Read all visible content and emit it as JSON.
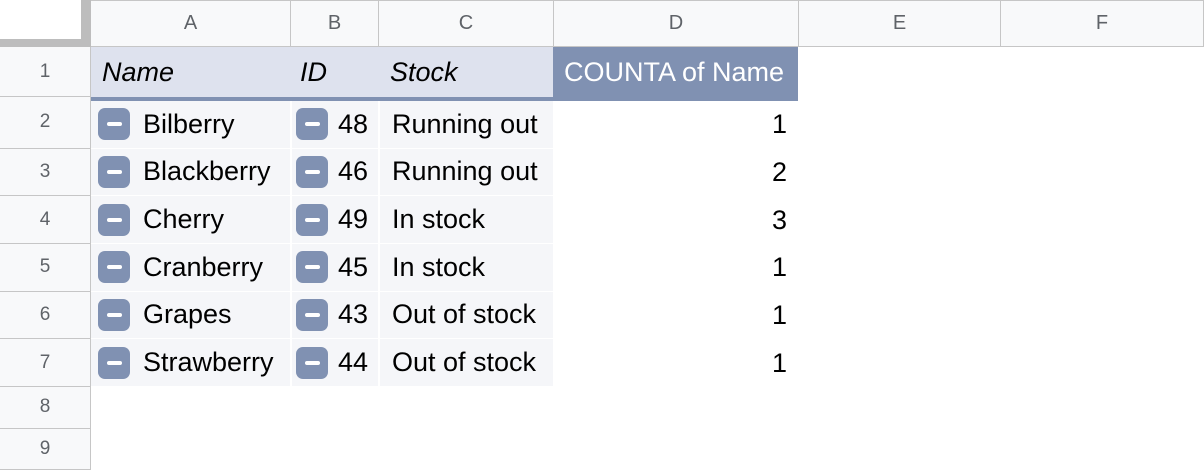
{
  "sheet": {
    "column_headers": [
      "A",
      "B",
      "C",
      "D",
      "E",
      "F"
    ],
    "row_headers": [
      "1",
      "2",
      "3",
      "4",
      "5",
      "6",
      "7",
      "8",
      "9"
    ],
    "pivot_table": {
      "header_row": {
        "name_label": "Name",
        "id_label": "ID",
        "stock_label": "Stock",
        "value_label": "COUNTA of Name"
      },
      "rows": [
        {
          "name": "Bilberry",
          "id": "48",
          "stock": "Running out",
          "count": "1"
        },
        {
          "name": "Blackberry",
          "id": "46",
          "stock": "Running out",
          "count": "2"
        },
        {
          "name": "Cherry",
          "id": "49",
          "stock": "In stock",
          "count": "3"
        },
        {
          "name": "Cranberry",
          "id": "45",
          "stock": "In stock",
          "count": "1"
        },
        {
          "name": "Grapes",
          "id": "43",
          "stock": "Out of stock",
          "count": "1"
        },
        {
          "name": "Strawberry",
          "id": "44",
          "stock": "Out of stock",
          "count": "1"
        }
      ]
    },
    "icons": {
      "collapse": "minus"
    },
    "colors": {
      "pivot_accent": "#8091b2",
      "pivot_header_bg": "#dee2ee",
      "pivot_body_bg": "#f5f6f9",
      "chrome_bg": "#f8f9fa",
      "chrome_text": "#5f6368"
    }
  }
}
